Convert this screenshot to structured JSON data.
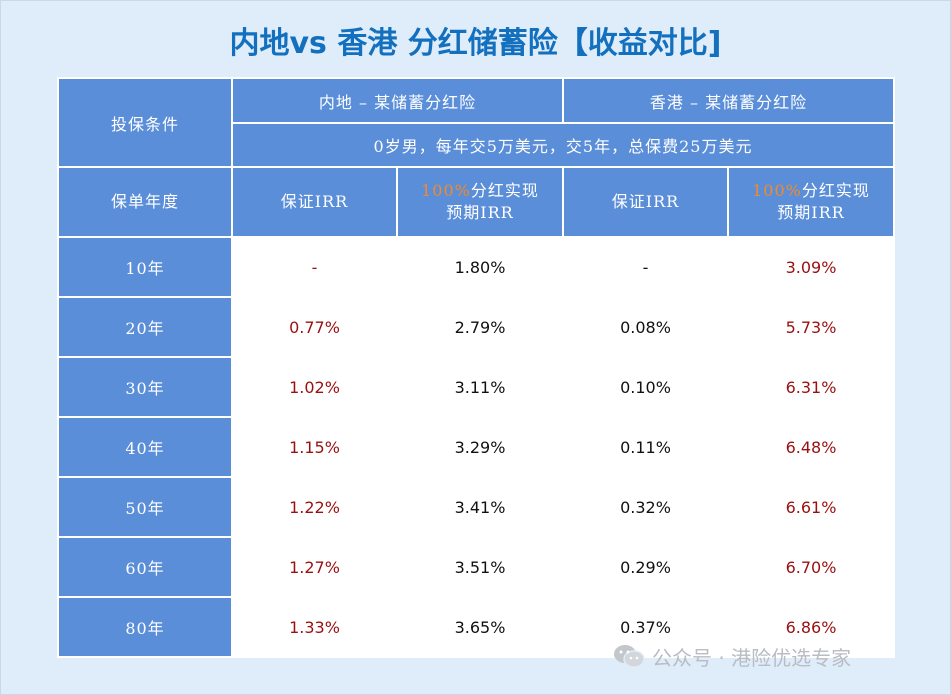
{
  "title": "内地vs 香港 分红储蓄险【收益对比]",
  "header": {
    "condition_label": "投保条件",
    "mainland_product": "内地 – 某储蓄分红险",
    "hk_product": "香港 – 某储蓄分红险",
    "condition_text": "0岁男，每年交5万美元，交5年，总保费25万美元",
    "year_label": "保单年度",
    "guaranteed_irr": "保证IRR",
    "dividend_prefix": "100%",
    "dividend_suffix": "分红实现",
    "dividend_line2": "预期IRR"
  },
  "rows": [
    {
      "year": "10年",
      "ml_guar": "-",
      "ml_exp": "1.80%",
      "hk_guar": "-",
      "hk_exp": "3.09%"
    },
    {
      "year": "20年",
      "ml_guar": "0.77%",
      "ml_exp": "2.79%",
      "hk_guar": "0.08%",
      "hk_exp": "5.73%"
    },
    {
      "year": "30年",
      "ml_guar": "1.02%",
      "ml_exp": "3.11%",
      "hk_guar": "0.10%",
      "hk_exp": "6.31%"
    },
    {
      "year": "40年",
      "ml_guar": "1.15%",
      "ml_exp": "3.29%",
      "hk_guar": "0.11%",
      "hk_exp": "6.48%"
    },
    {
      "year": "50年",
      "ml_guar": "1.22%",
      "ml_exp": "3.41%",
      "hk_guar": "0.32%",
      "hk_exp": "6.61%"
    },
    {
      "year": "60年",
      "ml_guar": "1.27%",
      "ml_exp": "3.51%",
      "hk_guar": "0.29%",
      "hk_exp": "6.70%"
    },
    {
      "year": "80年",
      "ml_guar": "1.33%",
      "ml_exp": "3.65%",
      "hk_guar": "0.37%",
      "hk_exp": "6.86%"
    }
  ],
  "watermark": {
    "text": "公众号 · 港险优选专家",
    "icon": "wechat-icon"
  },
  "colors": {
    "title": "#1270bf",
    "header_bg": "#5b8ed8",
    "highlight_red": "#9a1010",
    "highlight_orange": "#f08a2a"
  }
}
